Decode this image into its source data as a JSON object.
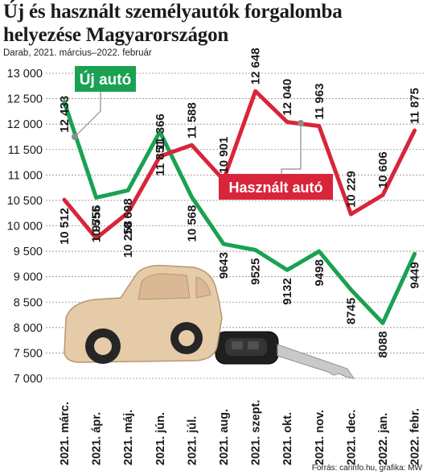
{
  "header": {
    "title": "Új és használt személyautók forgalomba helyezése Magyarországon",
    "subtitle": "Darab, 2021. március–2022. február"
  },
  "footer": {
    "credit": "Forrás: carinfo.hu, grafika: MW"
  },
  "chart_data": {
    "type": "line",
    "categories": [
      "2021. márc.",
      "2021. ápr.",
      "2021. máj.",
      "2021. jún.",
      "2021. júl.",
      "2021. aug.",
      "2021. szept.",
      "2021. okt.",
      "2021. nov.",
      "2021. dec.",
      "2022. jan.",
      "2022. febr."
    ],
    "ylim": [
      7000,
      13000
    ],
    "yticks": [
      7000,
      7500,
      8000,
      8500,
      9000,
      9500,
      10000,
      10500,
      11000,
      11500,
      12000,
      12500,
      13000
    ],
    "ytick_labels": [
      "7 000",
      "7 500",
      "8 000",
      "8 500",
      "9 000",
      "9 500",
      "10 000",
      "10 500",
      "11 000",
      "11 500",
      "12 000",
      "12 500",
      "13 000"
    ],
    "grid": true,
    "series": [
      {
        "name": "Új autó",
        "color": "#1aa152",
        "values": [
          12433,
          10555,
          10698,
          11851,
          10568,
          9643,
          9525,
          9132,
          9498,
          8745,
          8088,
          9449
        ],
        "labels": [
          "12 433",
          "10 555",
          "10 698",
          "11 851",
          "10 568",
          "9643",
          "9525",
          "9132",
          "9498",
          "8745",
          "8088",
          "9449"
        ]
      },
      {
        "name": "Használt autó",
        "color": "#d8253a",
        "values": [
          10512,
          9756,
          10258,
          11366,
          11588,
          10901,
          12648,
          12040,
          11963,
          10229,
          10606,
          11875
        ],
        "labels": [
          "10 512",
          "9756",
          "10 258",
          "11 366",
          "11 588",
          "10 901",
          "12 648",
          "12 040",
          "11 963",
          "10 229",
          "10 606",
          "11 875"
        ]
      }
    ]
  },
  "illustration": {
    "icon": "toy-car-with-key-icon"
  }
}
